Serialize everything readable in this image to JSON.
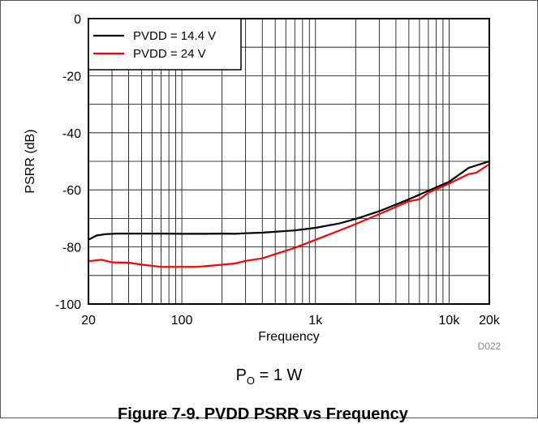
{
  "chart_data": {
    "type": "line",
    "title": "",
    "xlabel": "Frequency",
    "ylabel": "PSRR (dB)",
    "x_scale": "log",
    "xlim": [
      20,
      20000
    ],
    "ylim": [
      -100,
      0
    ],
    "x_ticks": [
      20,
      100,
      1000,
      10000,
      20000
    ],
    "x_tick_labels": [
      "20",
      "100",
      "1k",
      "10k",
      "20k"
    ],
    "y_ticks": [
      0,
      -20,
      -40,
      -60,
      -80,
      -100
    ],
    "y_tick_labels": [
      "0",
      "-20",
      "-40",
      "-60",
      "-80",
      "-100"
    ],
    "grid": true,
    "legend_position": "top-left",
    "series": [
      {
        "name": "PVDD = 14.4 V",
        "color": "#000000",
        "x": [
          20,
          23,
          27,
          33,
          40,
          50,
          70,
          100,
          150,
          200,
          250,
          300,
          400,
          500,
          700,
          1000,
          1500,
          2000,
          3000,
          5000,
          7000,
          10000,
          14000,
          20000
        ],
        "y": [
          -77.5,
          -76,
          -75.5,
          -75.3,
          -75.3,
          -75.3,
          -75.3,
          -75.4,
          -75.4,
          -75.3,
          -75.4,
          -75.2,
          -75.0,
          -74.7,
          -74.2,
          -73.3,
          -71.8,
          -70.2,
          -67.5,
          -63.3,
          -60.3,
          -57.2,
          -52.3,
          -50.0
        ]
      },
      {
        "name": "PVDD = 24 V",
        "color": "#ff0000",
        "x": [
          20,
          25,
          30,
          40,
          50,
          70,
          100,
          130,
          170,
          250,
          300,
          400,
          500,
          700,
          1000,
          1500,
          2000,
          3000,
          5000,
          6000,
          7000,
          10000,
          14000,
          16000,
          20000
        ],
        "y": [
          -85,
          -84.5,
          -85.4,
          -85.5,
          -86.2,
          -87.0,
          -87.0,
          -87.0,
          -86.5,
          -85.8,
          -84.9,
          -84.0,
          -82.5,
          -80.3,
          -77.5,
          -74.3,
          -72.0,
          -68.5,
          -64.0,
          -63.3,
          -61.0,
          -57.8,
          -54.5,
          -54.0,
          -51.0
        ]
      }
    ]
  },
  "chart_id": "D022",
  "condition": {
    "prefix": "P",
    "subscript": "O",
    "suffix": " = 1 W"
  },
  "caption": "Figure 7-9. PVDD PSRR vs Frequency"
}
